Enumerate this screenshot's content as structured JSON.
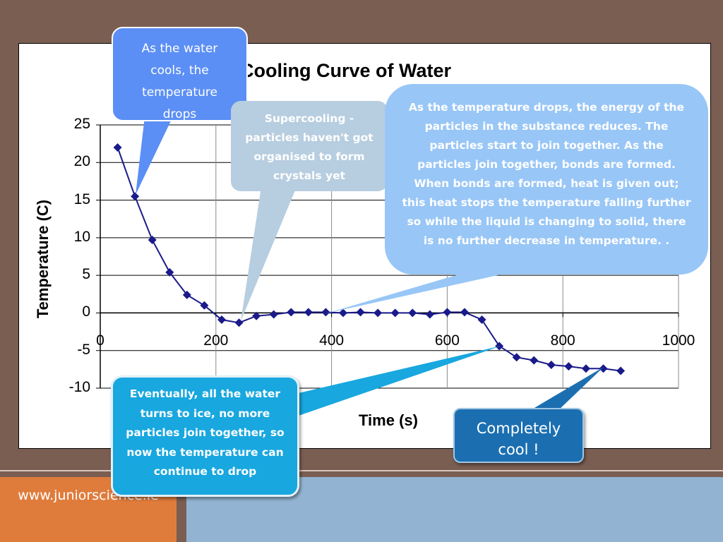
{
  "chart_data": {
    "type": "line",
    "title": "Cooling Curve of Water",
    "xlabel": "Time (s)",
    "ylabel": "Temperature (C)",
    "xlim": [
      0,
      1000
    ],
    "ylim": [
      -10,
      25
    ],
    "xticks": [
      0,
      200,
      400,
      600,
      800,
      1000
    ],
    "yticks": [
      25,
      20,
      15,
      10,
      5,
      0,
      -5,
      -10
    ],
    "grid": true,
    "series": [
      {
        "x": [
          30,
          60,
          90,
          120,
          150,
          180,
          210,
          240,
          270,
          300,
          330,
          360,
          390,
          420,
          450,
          480,
          510,
          540,
          570,
          600,
          630,
          660,
          690,
          720,
          750,
          780,
          810,
          840,
          870,
          900
        ],
        "y": [
          22,
          15.5,
          9.7,
          5.4,
          2.4,
          1.0,
          -0.9,
          -1.3,
          -0.4,
          -0.2,
          0.1,
          0.1,
          0.1,
          0.0,
          0.1,
          0.0,
          0.0,
          0.0,
          -0.2,
          0.1,
          0.1,
          -0.9,
          -4.4,
          -5.9,
          -6.3,
          -6.9,
          -7.1,
          -7.4,
          -7.4,
          -7.7
        ],
        "color": "#1a1a8a"
      }
    ]
  },
  "callouts": {
    "cooling": "As the water cools, the temperature drops",
    "supercooling": "Supercooling - particles haven't got organised to form crystals yet",
    "energy": "As the temperature drops, the energy of the particles in the substance reduces. The particles start to join together. As the particles join together, bonds are formed. When bonds are formed, heat is given out; this heat stops the temperature falling further so while the liquid is changing to solid, there is no further decrease in temperature. .",
    "ice": "Eventually, all the water turns to ice, no more particles join together, so now the temperature can continue to drop",
    "cool": "Completely cool !"
  },
  "footer": {
    "website": "www.juniorscience.ie"
  },
  "colors": {
    "background": "#7a5e52",
    "footer_left": "#df7c3c",
    "footer_right": "#92b4d2"
  }
}
